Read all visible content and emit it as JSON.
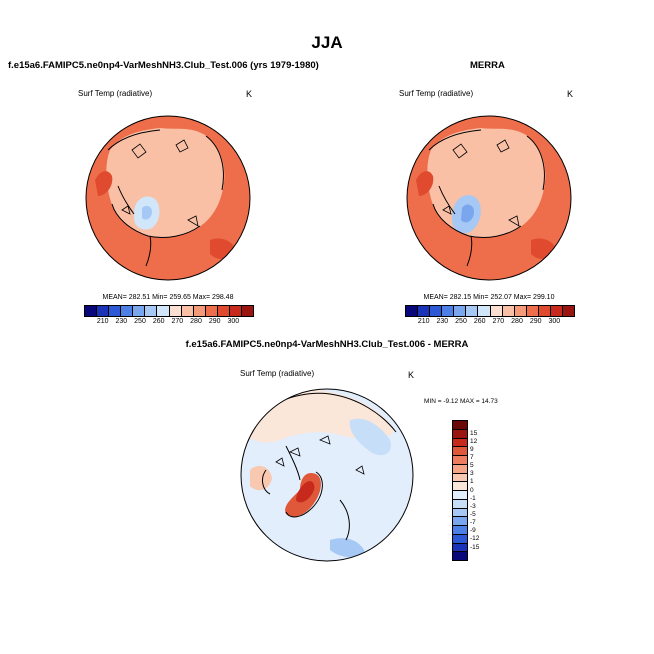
{
  "title": "JJA",
  "colors": {
    "abs_levels": [
      "#08087a",
      "#1a33b8",
      "#2e59d6",
      "#4d80e6",
      "#7aa6ee",
      "#a6c8f5",
      "#d2e6fa",
      "#fbe0d2",
      "#f9c0a6",
      "#f59a78",
      "#ee6e4c",
      "#e04a2e",
      "#c72a1c",
      "#9a1410"
    ],
    "diff_levels": [
      "#08087a",
      "#1a33b8",
      "#2e59d6",
      "#4d80e6",
      "#7aa6ee",
      "#a6c8f5",
      "#c6def8",
      "#e2eefc",
      "#fbe6da",
      "#f9c8b0",
      "#f5a486",
      "#ee7c5e",
      "#e0583a",
      "#c72a1c",
      "#9a1410",
      "#6a0808"
    ]
  },
  "panels": {
    "model": {
      "title": "f.e15a6.FAMIPC5.ne0np4-VarMeshNH3.Club_Test.006 (yrs 1979-1980)",
      "variable": "Surf Temp (radiative)",
      "units": "K",
      "stats": "MEAN= 282.51  Min= 259.65  Max= 298.48",
      "ticks": [
        "210",
        "230",
        "250",
        "260",
        "270",
        "280",
        "290",
        "300"
      ]
    },
    "obs": {
      "title": "MERRA",
      "variable": "Surf Temp (radiative)",
      "units": "K",
      "stats": "MEAN= 282.15  Min= 252.07  Max= 299.10",
      "ticks": [
        "210",
        "230",
        "250",
        "260",
        "270",
        "280",
        "290",
        "300"
      ]
    },
    "diff": {
      "title": "f.e15a6.FAMIPC5.ne0np4-VarMeshNH3.Club_Test.006 - MERRA",
      "variable": "Surf Temp (radiative)",
      "units": "K",
      "stats": "MIN = -9.12 MAX = 14.73",
      "ticks": [
        "15",
        "12",
        "9",
        "7",
        "5",
        "3",
        "1",
        "0",
        "-1",
        "-3",
        "-5",
        "-7",
        "-9",
        "-12",
        "-15"
      ]
    }
  }
}
